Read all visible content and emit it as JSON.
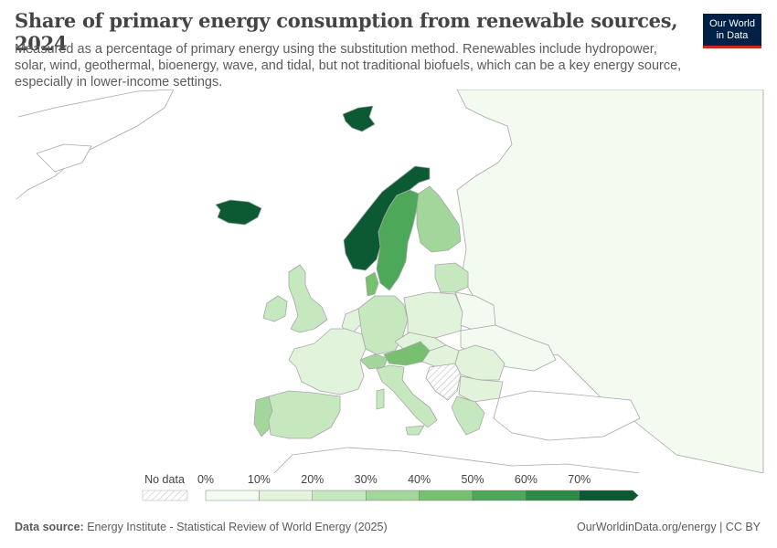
{
  "header": {
    "title": "Share of primary energy consumption from renewable sources, 2024",
    "subtitle": "Measured as a percentage of primary energy using the substitution method. Renewables include hydropower, solar, wind, geothermal, bioenergy, wave, and tidal, but not traditional biofuels, which can be a key energy source, especially in lower-income settings."
  },
  "logo": {
    "line1": "Our World",
    "line2": "in Data"
  },
  "legend": {
    "no_data_label": "No data",
    "ticks": [
      "0%",
      "10%",
      "20%",
      "30%",
      "40%",
      "50%",
      "60%",
      "70%"
    ],
    "colors": [
      "#f3faf0",
      "#e2f3dc",
      "#c6e8bf",
      "#a3d69a",
      "#77c06f",
      "#4ea85a",
      "#2f8a47",
      "#0c5a33"
    ]
  },
  "map": {
    "colors": {
      "land_default": "#ffffff",
      "border": "#a7a7a7",
      "russia": "#f3faf0",
      "norway": "#0c5a33",
      "iceland": "#0c5a33",
      "svalbard": "#0c5a33",
      "sweden": "#4ea85a",
      "finland": "#a3d69a",
      "denmark": "#77c06f",
      "austria": "#77c06f",
      "portugal": "#a3d69a",
      "uk": "#c6e8bf",
      "ireland": "#c6e8bf",
      "germany": "#c6e8bf",
      "switzerland": "#a3d69a",
      "france": "#e2f3dc",
      "spain": "#c6e8bf",
      "italy": "#c6e8bf",
      "poland": "#e2f3dc",
      "baltics": "#c6e8bf",
      "belarus_ukraine": "#f3faf0",
      "central": "#e2f3dc",
      "greece": "#c6e8bf",
      "balkans_no_data": "hatch"
    }
  },
  "footer": {
    "source_label": "Data source:",
    "source_text": "Energy Institute - Statistical Review of World Energy (2025)",
    "right_text": "OurWorldinData.org/energy | CC BY"
  }
}
